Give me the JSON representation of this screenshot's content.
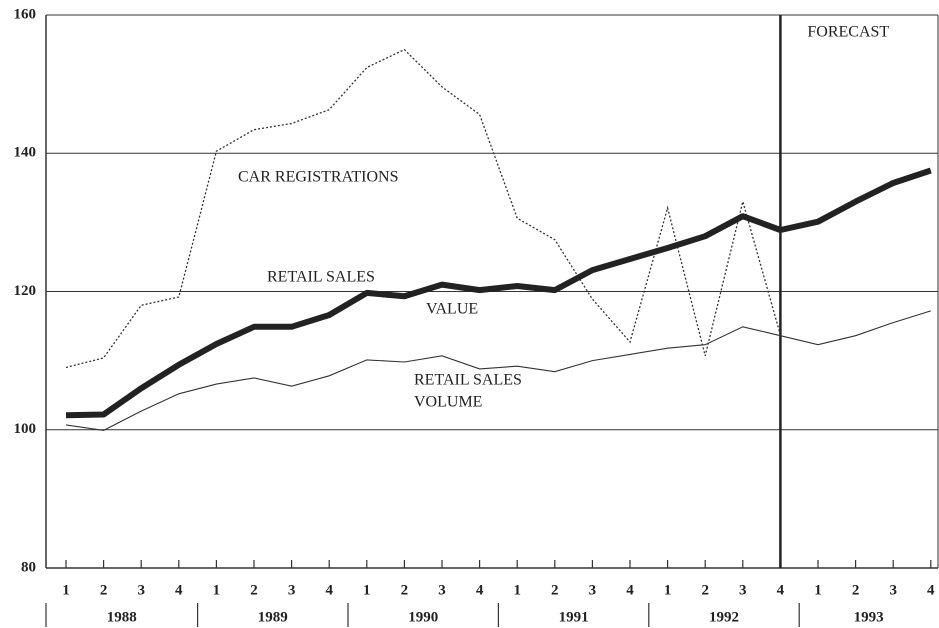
{
  "chart_data": {
    "type": "line",
    "categories": [
      "1",
      "2",
      "3",
      "4",
      "1",
      "2",
      "3",
      "4",
      "1",
      "2",
      "3",
      "4",
      "1",
      "2",
      "3",
      "4",
      "1",
      "2",
      "3",
      "4",
      "1",
      "2",
      "3",
      "4"
    ],
    "x_groups": [
      "1988",
      "1989",
      "1990",
      "1991",
      "1992",
      "1993"
    ],
    "ylim": [
      80,
      160
    ],
    "yticks": [
      80,
      100,
      120,
      140,
      160
    ],
    "grid": true,
    "forecast": {
      "label": "FORECAST",
      "category_index": 19
    },
    "series": [
      {
        "label": [
          "CAR REGISTRATIONS"
        ],
        "color": "#333",
        "style": "dotted",
        "values": [
          109,
          110.4,
          118,
          119.2,
          140.3,
          143.4,
          144.3,
          146.3,
          152.4,
          155,
          149.6,
          145.6,
          130.6,
          127.5,
          118.9,
          112.7,
          132.1,
          110.7,
          133,
          113.7,
          null,
          null,
          null,
          null
        ]
      },
      {
        "label": [
          "RETAIL SALES",
          "VALUE"
        ],
        "color": "#222",
        "style": "thick",
        "values": [
          102.1,
          102.2,
          106,
          109.4,
          112.4,
          114.9,
          114.9,
          116.6,
          119.8,
          119.3,
          121,
          120.2,
          120.8,
          120.2,
          123.1,
          124.7,
          126.3,
          128,
          130.9,
          128.9,
          130.1,
          133,
          135.7,
          137.5
        ]
      },
      {
        "label": [
          "RETAIL SALES",
          "VOLUME"
        ],
        "color": "#333",
        "style": "thin",
        "values": [
          100.7,
          99.9,
          102.7,
          105.2,
          106.6,
          107.5,
          106.3,
          107.8,
          110.1,
          109.8,
          110.7,
          108.8,
          109.2,
          108.4,
          110,
          110.9,
          111.8,
          112.3,
          114.9,
          113.6,
          112.3,
          113.6,
          115.5,
          117.2
        ]
      }
    ]
  }
}
